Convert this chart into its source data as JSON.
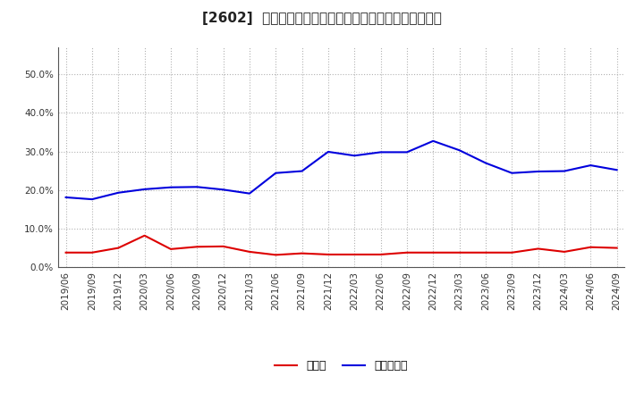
{
  "title": "[2602]  現預金、有利子負債の総資産に対する比率の推移",
  "x_labels": [
    "2019/06",
    "2019/09",
    "2019/12",
    "2020/03",
    "2020/06",
    "2020/09",
    "2020/12",
    "2021/03",
    "2021/06",
    "2021/09",
    "2021/12",
    "2022/03",
    "2022/06",
    "2022/09",
    "2022/12",
    "2023/03",
    "2023/06",
    "2023/09",
    "2023/12",
    "2024/03",
    "2024/06",
    "2024/09"
  ],
  "cash": [
    0.038,
    0.038,
    0.05,
    0.082,
    0.047,
    0.053,
    0.054,
    0.04,
    0.032,
    0.036,
    0.033,
    0.033,
    0.033,
    0.038,
    0.038,
    0.038,
    0.038,
    0.038,
    0.048,
    0.04,
    0.052,
    0.05
  ],
  "debt": [
    0.181,
    0.176,
    0.193,
    0.202,
    0.207,
    0.208,
    0.201,
    0.191,
    0.244,
    0.249,
    0.299,
    0.289,
    0.298,
    0.298,
    0.327,
    0.303,
    0.27,
    0.244,
    0.248,
    0.249,
    0.264,
    0.252
  ],
  "cash_color": "#dd0000",
  "debt_color": "#0000dd",
  "background_color": "#ffffff",
  "plot_background": "#ffffff",
  "grid_color": "#aaaaaa",
  "ylabel_ticks": [
    0.0,
    0.1,
    0.2,
    0.3,
    0.4,
    0.5
  ],
  "ylim": [
    0.0,
    0.57
  ],
  "legend_cash": "現預金",
  "legend_debt": "有利子負債",
  "title_fontsize": 11,
  "tick_fontsize": 7.5,
  "legend_fontsize": 9
}
